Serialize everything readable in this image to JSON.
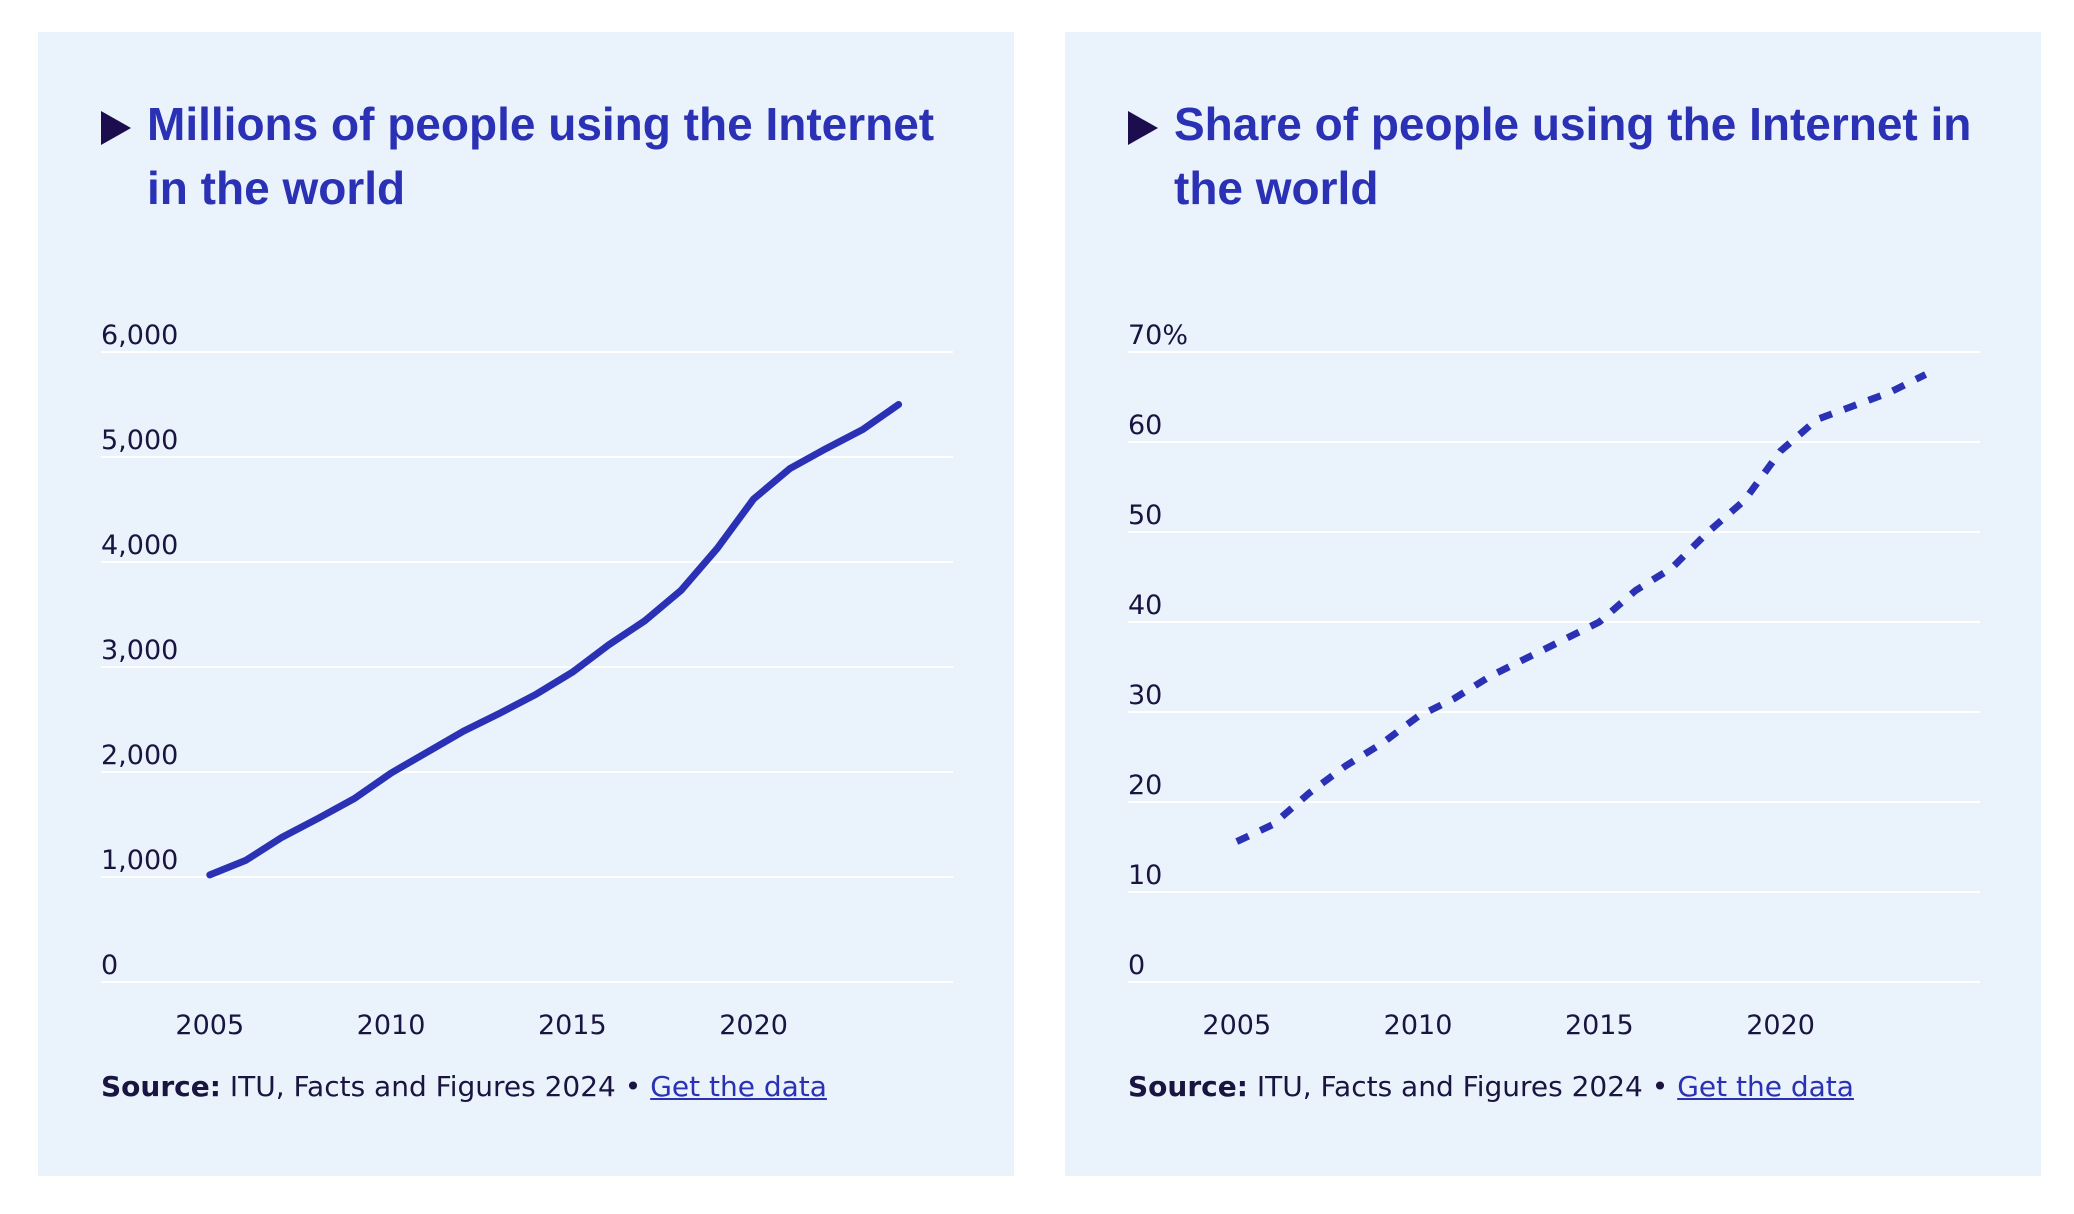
{
  "colors": {
    "accent": "#2a31b5",
    "text": "#1a1440",
    "panel": "#eaf3fb",
    "grid": "#ffffff"
  },
  "panels": [
    {
      "title": "Millions of people using the Internet in the world",
      "source_label": "Source:",
      "source_text": "ITU, Facts and Figures 2024 •",
      "link_text": "Get the data"
    },
    {
      "title": "Share of people using the Internet in the world",
      "source_label": "Source:",
      "source_text": "ITU, Facts and Figures 2024 •",
      "link_text": "Get the data"
    }
  ],
  "chart_data": [
    {
      "type": "line",
      "line_style": "solid",
      "ylim": [
        0,
        6000
      ],
      "yticks": [
        0,
        1000,
        2000,
        3000,
        4000,
        5000,
        6000
      ],
      "ytick_labels": [
        "0",
        "1,000",
        "2,000",
        "3,000",
        "4,000",
        "5,000",
        "6,000"
      ],
      "xlim": [
        2002,
        2025.5
      ],
      "xticks": [
        2005,
        2010,
        2015,
        2020
      ],
      "xtick_labels": [
        "2005",
        "2010",
        "2015",
        "2020"
      ],
      "x": [
        2005,
        2006,
        2007,
        2008,
        2009,
        2010,
        2011,
        2012,
        2013,
        2014,
        2015,
        2016,
        2017,
        2018,
        2019,
        2020,
        2021,
        2022,
        2023,
        2024
      ],
      "y": [
        1020,
        1160,
        1380,
        1560,
        1750,
        1990,
        2190,
        2390,
        2560,
        2740,
        2950,
        3210,
        3440,
        3730,
        4130,
        4600,
        4890,
        5080,
        5260,
        5500
      ],
      "grid": true
    },
    {
      "type": "line",
      "line_style": "dashed",
      "ylim": [
        0,
        70
      ],
      "yticks": [
        0,
        10,
        20,
        30,
        40,
        50,
        60,
        70
      ],
      "ytick_labels": [
        "0",
        "10",
        "20",
        "30",
        "40",
        "50",
        "60",
        "70%"
      ],
      "xlim": [
        2002,
        2025.5
      ],
      "xticks": [
        2005,
        2010,
        2015,
        2020
      ],
      "xtick_labels": [
        "2005",
        "2010",
        "2015",
        "2020"
      ],
      "x": [
        2005,
        2006,
        2007,
        2008,
        2009,
        2010,
        2011,
        2012,
        2013,
        2014,
        2015,
        2016,
        2017,
        2018,
        2019,
        2020,
        2021,
        2022,
        2023,
        2024
      ],
      "y": [
        15.6,
        17.5,
        21,
        24,
        26.5,
        29.5,
        31.5,
        34,
        36,
        38,
        40,
        43.5,
        46,
        50,
        53.5,
        59,
        62.5,
        64,
        65.5,
        67.5
      ],
      "grid": true
    }
  ]
}
